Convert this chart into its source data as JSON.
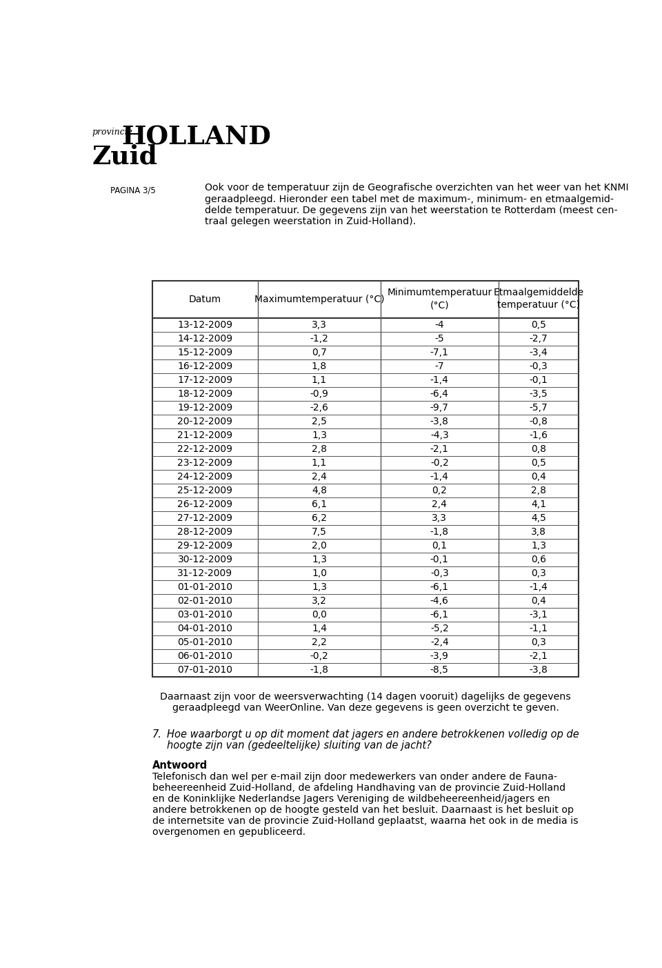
{
  "page_label": "PAGINA 3/5",
  "intro_text": [
    "Ook voor de temperatuur zijn de Geografische overzichten van het weer van het KNMI",
    "geraadpleegd. Hieronder een tabel met de maximum-, minimum- en etmaalgemid-",
    "delde temperatuur. De gegevens zijn van het weerstation te Rotterdam (meest cen-",
    "traal gelegen weerstation in Zuid-Holland)."
  ],
  "col_headers": [
    "Datum",
    "Maximumtemperatuur (°C)",
    "Minimumtemperatuur\n(°C)",
    "Etmaalgemiddelde\ntemperatuur (°C)"
  ],
  "table_data": [
    [
      "13-12-2009",
      "3,3",
      "-4",
      "0,5"
    ],
    [
      "14-12-2009",
      "-1,2",
      "-5",
      "-2,7"
    ],
    [
      "15-12-2009",
      "0,7",
      "-7,1",
      "-3,4"
    ],
    [
      "16-12-2009",
      "1,8",
      "-7",
      "-0,3"
    ],
    [
      "17-12-2009",
      "1,1",
      "-1,4",
      "-0,1"
    ],
    [
      "18-12-2009",
      "-0,9",
      "-6,4",
      "-3,5"
    ],
    [
      "19-12-2009",
      "-2,6",
      "-9,7",
      "-5,7"
    ],
    [
      "20-12-2009",
      "2,5",
      "-3,8",
      "-0,8"
    ],
    [
      "21-12-2009",
      "1,3",
      "-4,3",
      "-1,6"
    ],
    [
      "22-12-2009",
      "2,8",
      "-2,1",
      "0,8"
    ],
    [
      "23-12-2009",
      "1,1",
      "-0,2",
      "0,5"
    ],
    [
      "24-12-2009",
      "2,4",
      "-1,4",
      "0,4"
    ],
    [
      "25-12-2009",
      "4,8",
      "0,2",
      "2,8"
    ],
    [
      "26-12-2009",
      "6,1",
      "2,4",
      "4,1"
    ],
    [
      "27-12-2009",
      "6,2",
      "3,3",
      "4,5"
    ],
    [
      "28-12-2009",
      "7,5",
      "-1,8",
      "3,8"
    ],
    [
      "29-12-2009",
      "2,0",
      "0,1",
      "1,3"
    ],
    [
      "30-12-2009",
      "1,3",
      "-0,1",
      "0,6"
    ],
    [
      "31-12-2009",
      "1,0",
      "-0,3",
      "0,3"
    ],
    [
      "01-01-2010",
      "1,3",
      "-6,1",
      "-1,4"
    ],
    [
      "02-01-2010",
      "3,2",
      "-4,6",
      "0,4"
    ],
    [
      "03-01-2010",
      "0,0",
      "-6,1",
      "-3,1"
    ],
    [
      "04-01-2010",
      "1,4",
      "-5,2",
      "-1,1"
    ],
    [
      "05-01-2010",
      "2,2",
      "-2,4",
      "0,3"
    ],
    [
      "06-01-2010",
      "-0,2",
      "-3,9",
      "-2,1"
    ],
    [
      "07-01-2010",
      "-1,8",
      "-8,5",
      "-3,8"
    ]
  ],
  "footer_text": [
    "Daarnaast zijn voor de weersverwachting (14 dagen vooruit) dagelijks de gegevens",
    "geraadpleegd van WeerOnline. Van deze gegevens is geen overzicht te geven."
  ],
  "question_number": "7.",
  "question_lines": [
    "Hoe waarborgt u op dit moment dat jagers en andere betrokkenen volledig op de",
    "hoogte zijn van (gedeeltelijke) sluiting van de jacht?"
  ],
  "answer_label": "Antwoord",
  "answer_lines": [
    "Telefonisch dan wel per e-mail zijn door medewerkers van onder andere de Fauna-",
    "beheereenheid Zuid-Holland, de afdeling Handhaving van de provincie Zuid-Holland",
    "en de Koninklijke Nederlandse Jagers Vereniging de wildbeheereenheid/jagers en",
    "andere betrokkenen op de hoogte gesteld van het besluit. Daarnaast is het besluit op",
    "de internetsite van de provincie Zuid-Holland geplaatst, waarna het ook in de media is",
    "overgenomen en gepubliceerd."
  ],
  "bg_color": "#ffffff",
  "text_color": "#000000",
  "table_line_color": "#555555",
  "header_line_color": "#333333"
}
